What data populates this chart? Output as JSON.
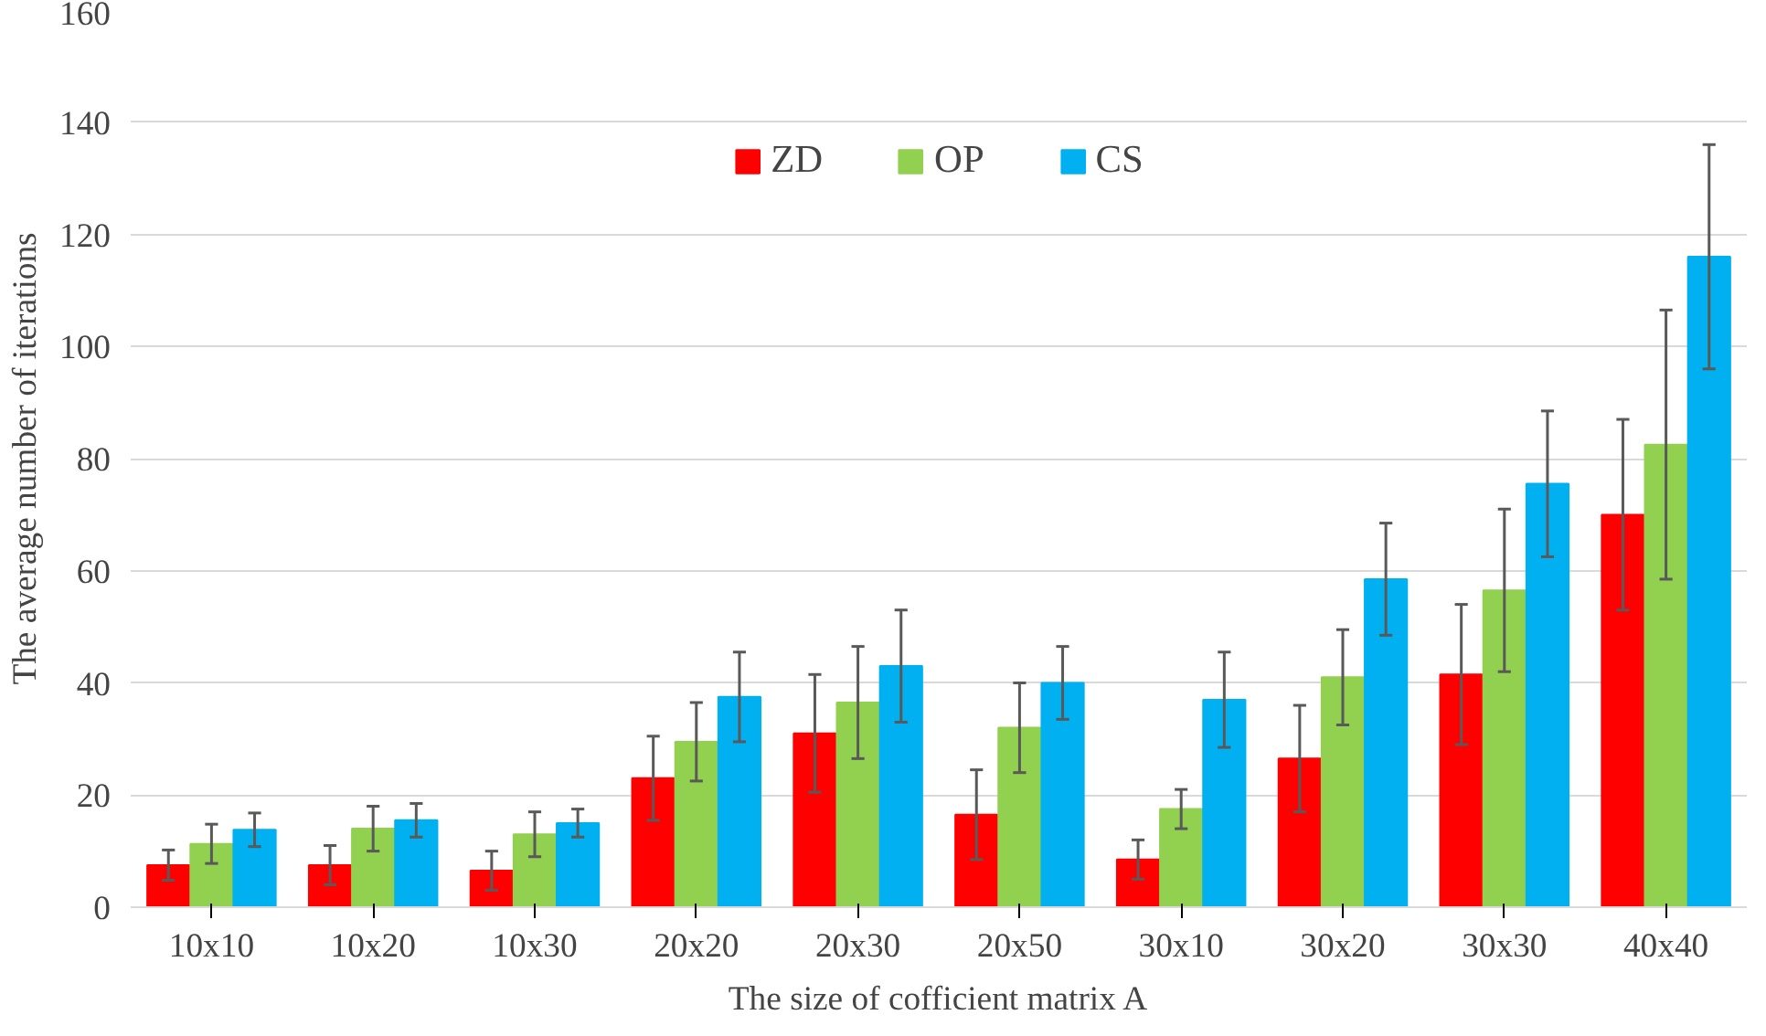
{
  "chart_data": {
    "type": "bar",
    "xlabel": "The size of cofficient matrix A",
    "ylabel": "The average number of iterations",
    "categories": [
      "10x10",
      "10x20",
      "10x30",
      "20x20",
      "20x30",
      "20x50",
      "30x10",
      "30x20",
      "30x30",
      "40x40"
    ],
    "series": [
      {
        "name": "ZD",
        "color": "#ff0000",
        "values": [
          7.5,
          7.5,
          6.5,
          23,
          31,
          16.5,
          8.5,
          26.5,
          41.5,
          70
        ],
        "errors": [
          2.7,
          3.5,
          3.5,
          7.5,
          10.5,
          8,
          3.5,
          9.5,
          12.5,
          17
        ]
      },
      {
        "name": "OP",
        "color": "#92d050",
        "values": [
          11.3,
          14,
          13,
          29.5,
          36.5,
          32,
          17.5,
          41,
          56.5,
          82.5
        ],
        "errors": [
          3.5,
          4,
          4,
          7,
          10,
          8,
          3.5,
          8.5,
          14.5,
          24
        ]
      },
      {
        "name": "CS",
        "color": "#00b0f0",
        "values": [
          13.8,
          15.5,
          15,
          37.5,
          43,
          40,
          37,
          58.5,
          75.5,
          116
        ],
        "errors": [
          3,
          3,
          2.5,
          8,
          10,
          6.5,
          8.5,
          10,
          13,
          20
        ]
      }
    ],
    "ylim": [
      0,
      160
    ],
    "yticks": [
      0,
      20,
      40,
      60,
      80,
      100,
      120,
      140,
      160
    ],
    "grid": "y",
    "legend": "top"
  }
}
